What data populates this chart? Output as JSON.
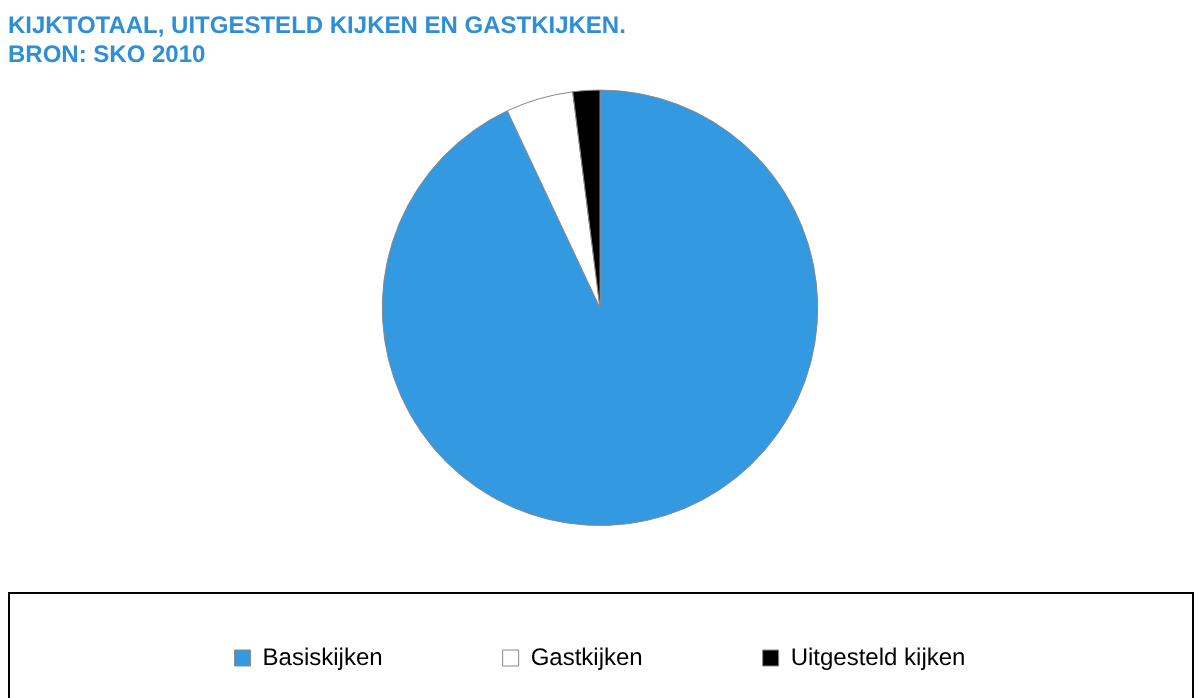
{
  "chart_data": {
    "type": "pie",
    "title": "KIJKTOTAAL, UITGESTELD KIJKEN EN GASTKIJKEN.",
    "subtitle": "BRON: SKO 2010",
    "categories": [
      "Basiskijken",
      "Gastkijken",
      "Uitgesteld kijken"
    ],
    "values": [
      93,
      5,
      2
    ],
    "colors": [
      "#3399e0",
      "#ffffff",
      "#000000"
    ],
    "legend": "bottom"
  }
}
